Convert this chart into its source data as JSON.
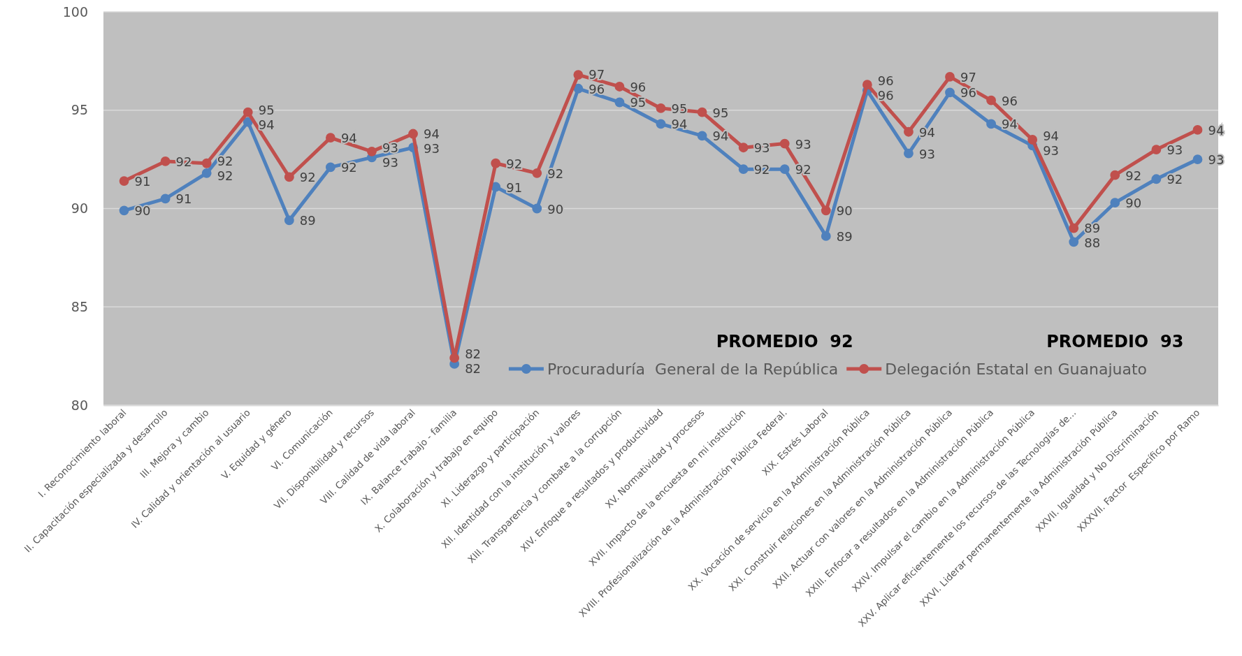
{
  "chart_data": {
    "type": "line",
    "categories": [
      "I. Reconocimiento laboral",
      "II. Capacitación especializada y desarrollo",
      "III. Mejora y cambio",
      "IV. Calidad y orientación al usuario",
      "V. Equidad y género",
      "VI. Comunicación",
      "VII. Disponibilidad y recursos",
      "VIII. Calidad de vida laboral",
      "IX. Balance trabajo - familia",
      "X. Colaboración y trabajo en equipo",
      "XI. Liderazgo y participación",
      "XII. Identidad con la institución y valores",
      "XIII. Transparencia y combate a la corrupción",
      "XIV. Enfoque a resultados y productividad",
      "XV. Normatividad y procesos",
      "XVII. Impacto de la encuesta en mi institución",
      "XVIII. Profesionalización de la Administración Pública Federal.",
      "XIX. Estrés Laboral",
      "XX. Vocación de servicio en la Administración Pública",
      "XXI. Construir relaciones en la Administración Pública",
      "XXII. Actuar con valores en la Administración Pública",
      "XXIII. Enfocar a resultados en la Administración Pública",
      "XXIV. Impulsar el cambio en la Administración Pública",
      "XXV. Aplicar eficientemente los recursos de las Tecnologías de...",
      "XXVI. Liderar permanentemente la Administración Pública",
      "XXVII. Igualdad y No Discriminación",
      "XXXVII. Factor  Específico por Ramo"
    ],
    "series": [
      {
        "name": "Procuraduría  General de la República",
        "color": "#4f81bd",
        "values": [
          89.9,
          90.5,
          91.8,
          94.4,
          89.4,
          92.1,
          92.6,
          93.1,
          82.1,
          91.1,
          90.0,
          96.1,
          95.4,
          94.3,
          93.7,
          92.0,
          92.0,
          88.6,
          96.0,
          92.8,
          95.9,
          94.3,
          93.2,
          88.3,
          90.3,
          91.5,
          92.5
        ],
        "value_labels": [
          "90",
          "91",
          "92",
          "94",
          "89",
          "92",
          "93",
          "93",
          "82",
          "91",
          "90",
          "96",
          "95",
          "94",
          "94",
          "92",
          "92",
          "89",
          "96",
          "93",
          "96",
          "94",
          "93",
          "88",
          "90",
          "92",
          "93"
        ]
      },
      {
        "name": "Delegación Estatal en Guanajuato",
        "color": "#c0504d",
        "values": [
          91.4,
          92.4,
          92.3,
          94.9,
          91.6,
          93.6,
          92.9,
          93.8,
          82.4,
          92.3,
          91.8,
          96.8,
          96.2,
          95.1,
          94.9,
          93.1,
          93.3,
          89.9,
          96.3,
          93.9,
          96.7,
          95.5,
          93.5,
          89.0,
          91.7,
          93.0,
          94.0
        ],
        "value_labels": [
          "91",
          "92",
          "92",
          "95",
          "92",
          "94",
          "93",
          "94",
          "82",
          "92",
          "92",
          "97",
          "96",
          "95",
          "95",
          "93",
          "93",
          "90",
          "96",
          "94",
          "97",
          "96",
          "94",
          "89",
          "92",
          "93",
          "94"
        ]
      }
    ],
    "ylim": [
      80,
      100
    ],
    "yticks": [
      80,
      85,
      90,
      95,
      100
    ],
    "grid": "y",
    "legend": "bottom",
    "marker": "circle",
    "line_style": "solid",
    "annotations": [
      "PROMEDIO  92",
      "PROMEDIO  93"
    ]
  }
}
